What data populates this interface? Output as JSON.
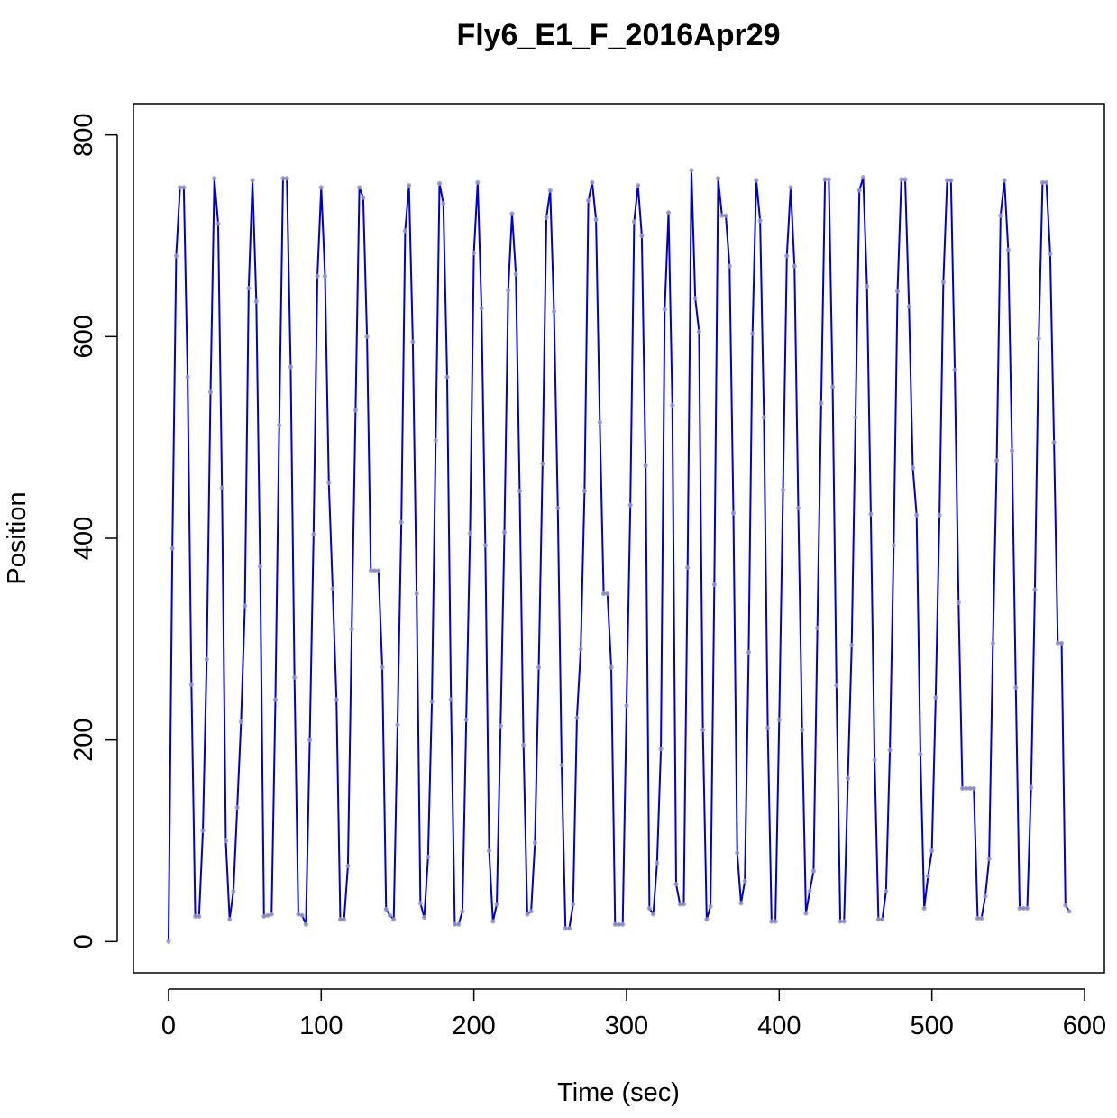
{
  "chart_data": {
    "type": "line",
    "title": "Fly6_E1_F_2016Apr29",
    "xlabel": "Time (sec)",
    "ylabel": "Position",
    "xlim": [
      -23,
      613
    ],
    "ylim": [
      -31,
      831
    ],
    "xticks": [
      0,
      100,
      200,
      300,
      400,
      500,
      600
    ],
    "xtick_labels": [
      "0",
      "100",
      "200",
      "300",
      "400",
      "500",
      "600"
    ],
    "yticks": [
      0,
      200,
      400,
      600,
      800
    ],
    "ytick_labels": [
      "0",
      "200",
      "400",
      "600",
      "800"
    ],
    "grid": false,
    "legend": "none",
    "series": [
      {
        "line_color": "#0000cc",
        "point_color": "#9a9ac8",
        "points": [
          [
            0,
            0
          ],
          [
            2.5,
            390
          ],
          [
            5,
            680
          ],
          [
            7.5,
            748
          ],
          [
            10,
            748
          ],
          [
            12.5,
            560
          ],
          [
            15,
            255
          ],
          [
            17.5,
            25
          ],
          [
            20,
            25
          ],
          [
            22.5,
            110
          ],
          [
            25,
            280
          ],
          [
            27.5,
            545
          ],
          [
            30,
            757
          ],
          [
            32.5,
            712
          ],
          [
            35,
            450
          ],
          [
            37.5,
            100
          ],
          [
            40,
            22
          ],
          [
            42.5,
            50
          ],
          [
            45,
            133
          ],
          [
            47.5,
            218
          ],
          [
            50,
            333
          ],
          [
            52.5,
            648
          ],
          [
            55,
            755
          ],
          [
            57.5,
            635
          ],
          [
            60,
            372
          ],
          [
            62.5,
            25
          ],
          [
            65,
            26
          ],
          [
            67.5,
            27
          ],
          [
            70,
            240
          ],
          [
            72.5,
            512
          ],
          [
            75,
            757
          ],
          [
            77.5,
            757
          ],
          [
            80,
            570
          ],
          [
            82.5,
            262
          ],
          [
            85,
            27
          ],
          [
            87.5,
            26
          ],
          [
            90,
            17
          ],
          [
            92.5,
            200
          ],
          [
            95,
            404
          ],
          [
            97.5,
            660
          ],
          [
            100,
            748
          ],
          [
            102.5,
            660
          ],
          [
            105,
            455
          ],
          [
            107.5,
            350
          ],
          [
            110,
            240
          ],
          [
            112.5,
            22
          ],
          [
            115,
            22
          ],
          [
            117.5,
            75
          ],
          [
            120,
            310
          ],
          [
            122.5,
            527
          ],
          [
            125,
            748
          ],
          [
            127.5,
            738
          ],
          [
            130,
            600
          ],
          [
            132.5,
            368
          ],
          [
            135,
            368
          ],
          [
            137.5,
            368
          ],
          [
            140,
            272
          ],
          [
            142.5,
            32
          ],
          [
            145,
            26
          ],
          [
            147.5,
            22
          ],
          [
            150,
            215
          ],
          [
            152.5,
            416
          ],
          [
            155,
            705
          ],
          [
            157.5,
            750
          ],
          [
            160,
            595
          ],
          [
            162.5,
            345
          ],
          [
            165,
            38
          ],
          [
            167.5,
            24
          ],
          [
            170,
            84
          ],
          [
            172.5,
            238
          ],
          [
            175,
            497
          ],
          [
            177.5,
            752
          ],
          [
            180,
            732
          ],
          [
            182.5,
            560
          ],
          [
            185,
            240
          ],
          [
            187.5,
            17
          ],
          [
            190,
            17
          ],
          [
            192.5,
            30
          ],
          [
            195,
            220
          ],
          [
            197.5,
            405
          ],
          [
            200,
            683
          ],
          [
            202.5,
            753
          ],
          [
            205,
            628
          ],
          [
            207.5,
            393
          ],
          [
            210,
            90
          ],
          [
            212.5,
            20
          ],
          [
            215,
            37
          ],
          [
            217.5,
            214
          ],
          [
            220,
            406
          ],
          [
            222.5,
            646
          ],
          [
            225,
            722
          ],
          [
            227.5,
            662
          ],
          [
            230,
            447
          ],
          [
            232.5,
            195
          ],
          [
            235,
            27
          ],
          [
            237.5,
            30
          ],
          [
            240,
            98
          ],
          [
            242.5,
            272
          ],
          [
            245,
            474
          ],
          [
            247.5,
            718
          ],
          [
            250,
            745
          ],
          [
            252.5,
            625
          ],
          [
            255,
            430
          ],
          [
            257.5,
            175
          ],
          [
            260,
            13
          ],
          [
            262.5,
            13
          ],
          [
            265,
            37
          ],
          [
            267.5,
            222
          ],
          [
            270,
            290
          ],
          [
            272.5,
            447
          ],
          [
            275,
            735
          ],
          [
            277.5,
            753
          ],
          [
            280,
            716
          ],
          [
            282.5,
            515
          ],
          [
            285,
            345
          ],
          [
            287.5,
            345
          ],
          [
            290,
            272
          ],
          [
            292.5,
            17
          ],
          [
            295,
            17
          ],
          [
            297.5,
            17
          ],
          [
            300,
            234
          ],
          [
            302.5,
            433
          ],
          [
            305,
            714
          ],
          [
            307.5,
            750
          ],
          [
            310,
            700
          ],
          [
            312.5,
            472
          ],
          [
            315,
            33
          ],
          [
            317.5,
            27
          ],
          [
            320,
            78
          ],
          [
            322.5,
            191
          ],
          [
            325,
            627
          ],
          [
            327.5,
            723
          ],
          [
            330,
            532
          ],
          [
            332.5,
            57
          ],
          [
            335,
            37
          ],
          [
            337.5,
            37
          ],
          [
            340,
            371
          ],
          [
            342.5,
            765
          ],
          [
            345,
            638
          ],
          [
            347.5,
            605
          ],
          [
            350,
            210
          ],
          [
            352.5,
            22
          ],
          [
            355,
            35
          ],
          [
            357.5,
            354
          ],
          [
            360,
            757
          ],
          [
            362.5,
            720
          ],
          [
            365,
            720
          ],
          [
            367.5,
            670
          ],
          [
            370,
            425
          ],
          [
            372.5,
            88
          ],
          [
            375,
            38
          ],
          [
            377.5,
            60
          ],
          [
            380,
            287
          ],
          [
            382.5,
            603
          ],
          [
            385,
            755
          ],
          [
            387.5,
            715
          ],
          [
            390,
            520
          ],
          [
            392.5,
            212
          ],
          [
            395,
            20
          ],
          [
            397.5,
            20
          ],
          [
            400,
            220
          ],
          [
            402.5,
            448
          ],
          [
            405,
            680
          ],
          [
            407.5,
            748
          ],
          [
            410,
            670
          ],
          [
            412.5,
            430
          ],
          [
            415,
            210
          ],
          [
            417.5,
            28
          ],
          [
            420,
            50
          ],
          [
            422.5,
            70
          ],
          [
            425,
            311
          ],
          [
            427.5,
            534
          ],
          [
            430,
            756
          ],
          [
            432.5,
            756
          ],
          [
            435,
            550
          ],
          [
            437.5,
            254
          ],
          [
            440,
            20
          ],
          [
            442.5,
            20
          ],
          [
            445,
            162
          ],
          [
            447.5,
            294
          ],
          [
            450,
            520
          ],
          [
            452.5,
            745
          ],
          [
            455,
            758
          ],
          [
            457.5,
            650
          ],
          [
            460,
            424
          ],
          [
            462.5,
            180
          ],
          [
            465,
            22
          ],
          [
            467.5,
            22
          ],
          [
            470,
            50
          ],
          [
            472.5,
            190
          ],
          [
            475,
            393
          ],
          [
            477.5,
            645
          ],
          [
            480,
            756
          ],
          [
            482.5,
            756
          ],
          [
            485,
            630
          ],
          [
            487.5,
            470
          ],
          [
            490,
            423
          ],
          [
            492.5,
            186
          ],
          [
            495,
            33
          ],
          [
            497.5,
            65
          ],
          [
            500,
            90
          ],
          [
            502.5,
            242
          ],
          [
            505,
            423
          ],
          [
            507.5,
            654
          ],
          [
            510,
            755
          ],
          [
            512.5,
            755
          ],
          [
            515,
            567
          ],
          [
            517.5,
            336
          ],
          [
            520,
            152
          ],
          [
            522.5,
            152
          ],
          [
            525,
            152
          ],
          [
            527.5,
            152
          ],
          [
            530,
            23
          ],
          [
            532.5,
            23
          ],
          [
            535,
            45
          ],
          [
            537.5,
            82
          ],
          [
            540,
            296
          ],
          [
            542.5,
            477
          ],
          [
            545,
            720
          ],
          [
            547.5,
            755
          ],
          [
            550,
            686
          ],
          [
            552.5,
            487
          ],
          [
            555,
            252
          ],
          [
            557.5,
            33
          ],
          [
            560,
            33
          ],
          [
            562.5,
            33
          ],
          [
            565,
            153
          ],
          [
            567.5,
            349
          ],
          [
            570,
            598
          ],
          [
            572.5,
            753
          ],
          [
            575,
            753
          ],
          [
            577.5,
            682
          ],
          [
            580,
            495
          ],
          [
            582.5,
            296
          ],
          [
            585,
            296
          ],
          [
            587.5,
            36
          ],
          [
            590,
            30
          ]
        ]
      }
    ]
  }
}
